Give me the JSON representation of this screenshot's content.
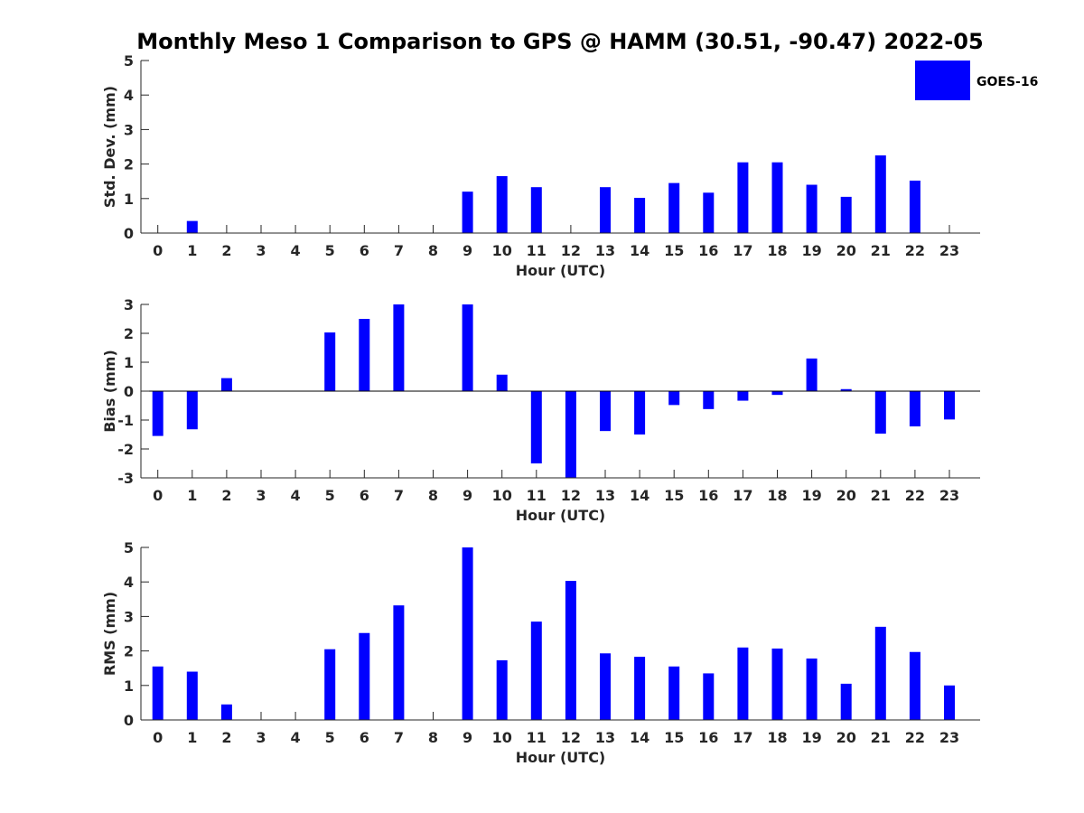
{
  "figure": {
    "title": "Monthly Meso 1 Comparison to GPS @ HAMM (30.51, -90.47) 2022-05",
    "legend_label": "GOES-16",
    "legend_position": "top-right",
    "bar_color": "#0000ff"
  },
  "chart_data": [
    {
      "type": "bar",
      "title": "Monthly Meso 1 Comparison to GPS @ HAMM (30.51, -90.47) 2022-05",
      "xlabel": "Hour (UTC)",
      "ylabel": "Std. Dev. (mm)",
      "categories": [
        "0",
        "1",
        "2",
        "3",
        "4",
        "5",
        "6",
        "7",
        "8",
        "9",
        "10",
        "11",
        "12",
        "13",
        "14",
        "15",
        "16",
        "17",
        "18",
        "19",
        "20",
        "21",
        "22",
        "23"
      ],
      "ylim": [
        0,
        5
      ],
      "yticks": [
        0,
        1,
        2,
        3,
        4,
        5
      ],
      "grid": false,
      "series": [
        {
          "name": "GOES-16",
          "color": "#0000ff",
          "values": [
            0,
            0.35,
            0,
            0,
            0,
            0,
            0,
            0,
            0,
            1.2,
            1.65,
            1.33,
            0,
            1.33,
            1.02,
            1.45,
            1.17,
            2.05,
            2.05,
            1.4,
            1.05,
            2.25,
            1.52,
            0
          ]
        }
      ]
    },
    {
      "type": "bar",
      "xlabel": "Hour (UTC)",
      "ylabel": "Bias (mm)",
      "categories": [
        "0",
        "1",
        "2",
        "3",
        "4",
        "5",
        "6",
        "7",
        "8",
        "9",
        "10",
        "11",
        "12",
        "13",
        "14",
        "15",
        "16",
        "17",
        "18",
        "19",
        "20",
        "21",
        "22",
        "23"
      ],
      "ylim": [
        -3,
        3
      ],
      "yticks": [
        -3,
        -2,
        -1,
        0,
        1,
        2,
        3
      ],
      "grid": false,
      "series": [
        {
          "name": "GOES-16",
          "color": "#0000ff",
          "values": [
            -1.55,
            -1.32,
            0.45,
            0,
            0,
            2.03,
            2.5,
            3.0,
            0,
            3.0,
            0.57,
            -2.5,
            -3.0,
            -1.38,
            -1.5,
            -0.48,
            -0.62,
            -0.33,
            -0.13,
            1.13,
            0.07,
            -1.47,
            -1.22,
            -0.98
          ]
        }
      ]
    },
    {
      "type": "bar",
      "xlabel": "Hour (UTC)",
      "ylabel": "RMS (mm)",
      "categories": [
        "0",
        "1",
        "2",
        "3",
        "4",
        "5",
        "6",
        "7",
        "8",
        "9",
        "10",
        "11",
        "12",
        "13",
        "14",
        "15",
        "16",
        "17",
        "18",
        "19",
        "20",
        "21",
        "22",
        "23"
      ],
      "ylim": [
        0,
        5
      ],
      "yticks": [
        0,
        1,
        2,
        3,
        4,
        5
      ],
      "grid": false,
      "series": [
        {
          "name": "GOES-16",
          "color": "#0000ff",
          "values": [
            1.55,
            1.4,
            0.45,
            0,
            0,
            2.05,
            2.52,
            3.32,
            0,
            5.0,
            1.73,
            2.85,
            4.03,
            1.93,
            1.83,
            1.55,
            1.35,
            2.1,
            2.07,
            1.78,
            1.05,
            2.7,
            1.97,
            1.0
          ]
        }
      ]
    }
  ]
}
